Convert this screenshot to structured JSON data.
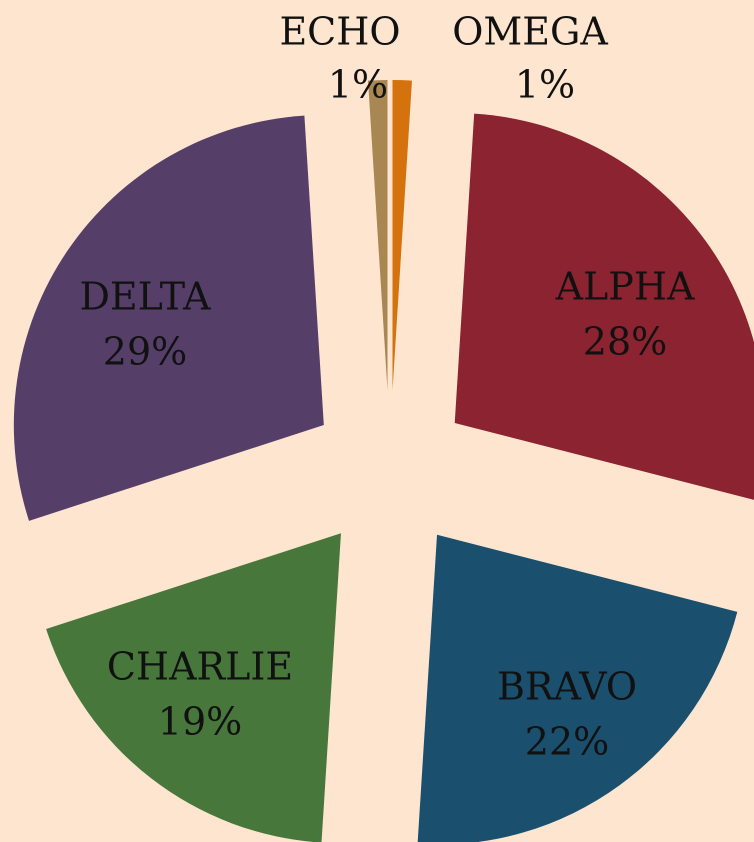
{
  "chart_data": {
    "type": "pie",
    "categories": [
      "OMEGA",
      "ALPHA",
      "BRAVO",
      "CHARLIE",
      "DELTA",
      "ECHO"
    ],
    "values": [
      1,
      28,
      22,
      19,
      29,
      1
    ],
    "value_labels": [
      "1%",
      "28%",
      "22%",
      "19%",
      "29%",
      "1%"
    ],
    "colors": [
      "#d4720e",
      "#8b2330",
      "#1a4f6e",
      "#47773a",
      "#553f68",
      "#a88752"
    ],
    "exploded": true
  }
}
